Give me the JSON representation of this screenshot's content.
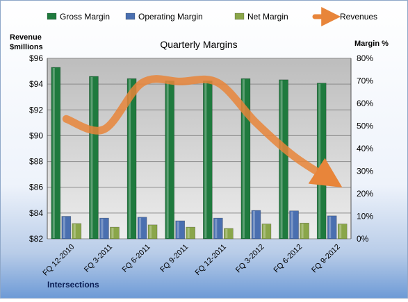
{
  "chart_data": {
    "type": "bar",
    "title": "Quarterly Margins",
    "left_axis_label_line1": "Revenue",
    "left_axis_label_line2": "$millions",
    "right_axis_label": "Margin %",
    "footer_label": "Intersections",
    "categories": [
      "FQ 12-2010",
      "FQ 3-2011",
      "FQ 6-2011",
      "FQ 9-2011",
      "FQ 12-2011",
      "FQ 3-2012",
      "FQ 6-2012",
      "FQ 9-2012"
    ],
    "left_axis": {
      "min": 82,
      "max": 96,
      "step": 2,
      "tick_labels": [
        "$82",
        "$84",
        "$86",
        "$88",
        "$90",
        "$92",
        "$94",
        "$96"
      ]
    },
    "right_axis": {
      "min": 0,
      "max": 80,
      "step": 10,
      "tick_labels": [
        "0%",
        "10%",
        "20%",
        "30%",
        "40%",
        "50%",
        "60%",
        "70%",
        "80%"
      ]
    },
    "grid": true,
    "legend_position": "top",
    "series": [
      {
        "name": "Gross Margin",
        "axis": "right",
        "kind": "bar",
        "color": "#1f7a3e",
        "values": [
          76,
          72,
          71,
          70,
          70,
          71,
          70.5,
          69
        ]
      },
      {
        "name": "Operating Margin",
        "axis": "right",
        "kind": "bar",
        "color": "#4a6fb0",
        "values": [
          10,
          9.2,
          9.6,
          8,
          9.2,
          12.6,
          12.4,
          10.2
        ]
      },
      {
        "name": "Net Margin",
        "axis": "right",
        "kind": "bar",
        "color": "#8aa64a",
        "values": [
          6.8,
          5.2,
          6.2,
          5.2,
          4.6,
          6.6,
          7,
          6.6
        ]
      },
      {
        "name": "Revenues",
        "axis": "left",
        "kind": "line",
        "color": "#e8853a",
        "values": [
          91.3,
          90.5,
          94.1,
          94.2,
          94.1,
          91,
          88.4,
          86.5
        ]
      }
    ]
  }
}
